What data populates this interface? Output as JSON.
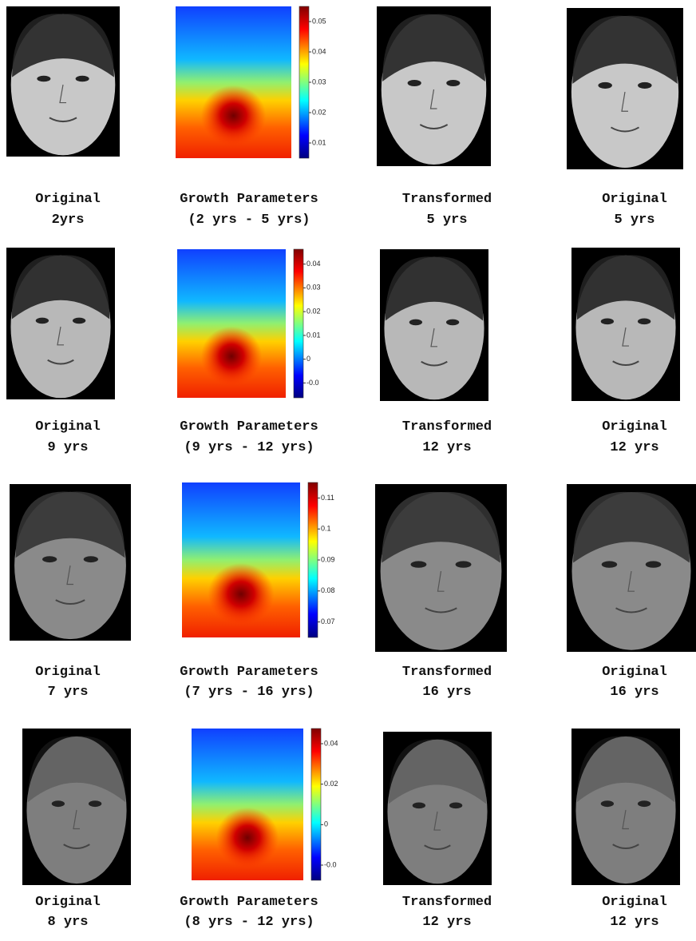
{
  "rows": [
    {
      "cells": [
        {
          "caption": [
            "Original",
            "2yrs"
          ]
        },
        {
          "caption": [
            "Growth Parameters",
            "(2 yrs - 5 yrs)"
          ],
          "colorbar_ticks": [
            "0.05",
            "0.04",
            "0.03",
            "0.02",
            "0.01"
          ]
        },
        {
          "caption": [
            "Transformed",
            "5 yrs"
          ]
        },
        {
          "caption": [
            "Original",
            "5 yrs"
          ]
        }
      ]
    },
    {
      "cells": [
        {
          "caption": [
            "Original",
            "9 yrs"
          ]
        },
        {
          "caption": [
            "Growth Parameters",
            "(9 yrs - 12 yrs)"
          ],
          "colorbar_ticks": [
            "0.04",
            "0.03",
            "0.02",
            "0.01",
            "0",
            "-0.0"
          ]
        },
        {
          "caption": [
            "Transformed",
            "12 yrs"
          ]
        },
        {
          "caption": [
            "Original",
            "12 yrs"
          ]
        }
      ]
    },
    {
      "cells": [
        {
          "caption": [
            "Original",
            "7 yrs"
          ]
        },
        {
          "caption": [
            "Growth Parameters",
            "(7 yrs - 16 yrs)"
          ],
          "colorbar_ticks": [
            "0.11",
            "0.1",
            "0.09",
            "0.08",
            "0.07"
          ]
        },
        {
          "caption": [
            "Transformed",
            "16 yrs"
          ]
        },
        {
          "caption": [
            "Original",
            "16 yrs"
          ]
        }
      ]
    },
    {
      "cells": [
        {
          "caption": [
            "Original",
            "8 yrs"
          ]
        },
        {
          "caption": [
            "Growth Parameters",
            "(8 yrs - 12 yrs)"
          ],
          "colorbar_ticks": [
            "0.04",
            "0.02",
            "0",
            "-0.0"
          ]
        },
        {
          "caption": [
            "Transformed",
            "12 yrs"
          ]
        },
        {
          "caption": [
            "Original",
            "12 yrs"
          ]
        }
      ]
    }
  ]
}
